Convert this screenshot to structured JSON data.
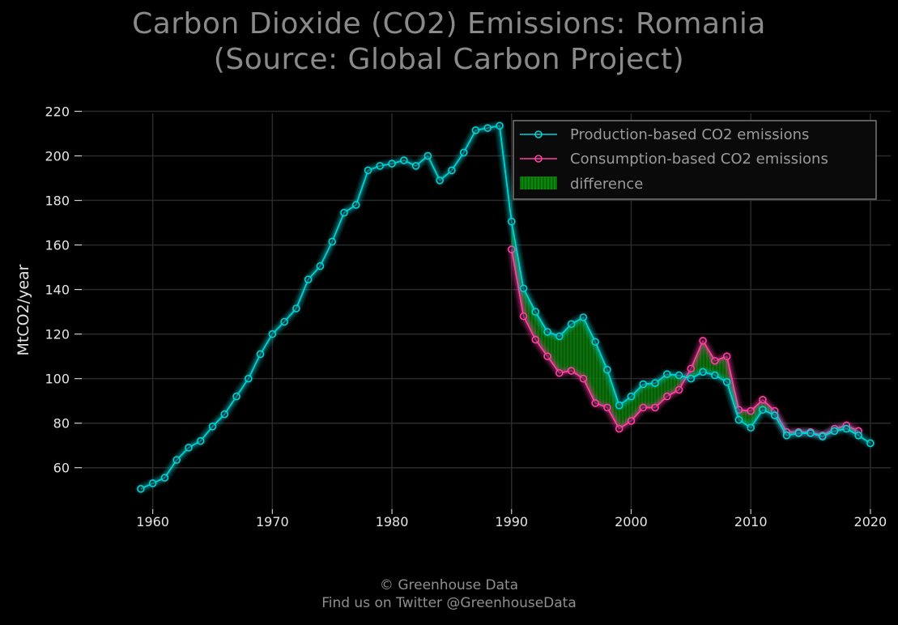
{
  "title_line1": "Carbon Dioxide (CO2) Emissions: Romania",
  "title_line2": "(Source: Global Carbon Project)",
  "footer_line1": "© Greenhouse Data",
  "footer_line2": "Find us on Twitter @GreenhouseData",
  "colors": {
    "background": "#000000",
    "production": "#00d4d8",
    "consumption": "#ff3fa4",
    "difference": "#0a7a0a",
    "grid": "#2a2a2a",
    "legend_border": "#777777"
  },
  "chart_data": {
    "type": "line",
    "title": "Carbon Dioxide (CO2) Emissions: Romania (Source: Global Carbon Project)",
    "xlabel": "",
    "ylabel": "MtCO2/year",
    "xlim": [
      1954,
      2021.7
    ],
    "ylim": [
      41,
      222
    ],
    "x_ticks": [
      1960,
      1970,
      1980,
      1990,
      2000,
      2010,
      2020
    ],
    "y_ticks": [
      60,
      80,
      100,
      120,
      140,
      160,
      180,
      200,
      220
    ],
    "grid": true,
    "legend_position": "top-right",
    "series": [
      {
        "name": "Production-based CO2 emissions",
        "x": [
          1959,
          1960,
          1961,
          1962,
          1963,
          1964,
          1965,
          1966,
          1967,
          1968,
          1969,
          1970,
          1971,
          1972,
          1973,
          1974,
          1975,
          1976,
          1977,
          1978,
          1979,
          1980,
          1981,
          1982,
          1983,
          1984,
          1985,
          1986,
          1987,
          1988,
          1989,
          1990,
          1991,
          1992,
          1993,
          1994,
          1995,
          1996,
          1997,
          1998,
          1999,
          2000,
          2001,
          2002,
          2003,
          2004,
          2005,
          2006,
          2007,
          2008,
          2009,
          2010,
          2011,
          2012,
          2013,
          2014,
          2015,
          2016,
          2017,
          2018,
          2019,
          2020
        ],
        "values": [
          50.5,
          53,
          55.5,
          63.5,
          69,
          72,
          78.5,
          84,
          92,
          100,
          111,
          120,
          125.5,
          131.5,
          144.5,
          150.5,
          161.5,
          174.5,
          178,
          193.5,
          195.5,
          196.5,
          198,
          195.5,
          200,
          189,
          193.5,
          201.5,
          211.5,
          212.5,
          213.5,
          170.5,
          140.5,
          130,
          121,
          119,
          124.5,
          127.5,
          116.5,
          104,
          88,
          92,
          97.5,
          98,
          102,
          101.5,
          100,
          103,
          101.5,
          98.5,
          81.5,
          78,
          86,
          83.5,
          74.5,
          75.5,
          75.5,
          74,
          76.5,
          77.5,
          74.5,
          71
        ]
      },
      {
        "name": "Consumption-based CO2 emissions",
        "x": [
          1990,
          1991,
          1992,
          1993,
          1994,
          1995,
          1996,
          1997,
          1998,
          1999,
          2000,
          2001,
          2002,
          2003,
          2004,
          2005,
          2006,
          2007,
          2008,
          2009,
          2010,
          2011,
          2012,
          2013,
          2014,
          2015,
          2016,
          2017,
          2018,
          2019
        ],
        "values": [
          158,
          128,
          117.5,
          110,
          102.5,
          103.5,
          100,
          89,
          87,
          77.5,
          81,
          87,
          87,
          92,
          95,
          104.5,
          117,
          108,
          110,
          86,
          85.5,
          90.5,
          85.5,
          76,
          76,
          76,
          74.5,
          77.5,
          79,
          76.5
        ]
      }
    ],
    "difference_label": "difference"
  }
}
